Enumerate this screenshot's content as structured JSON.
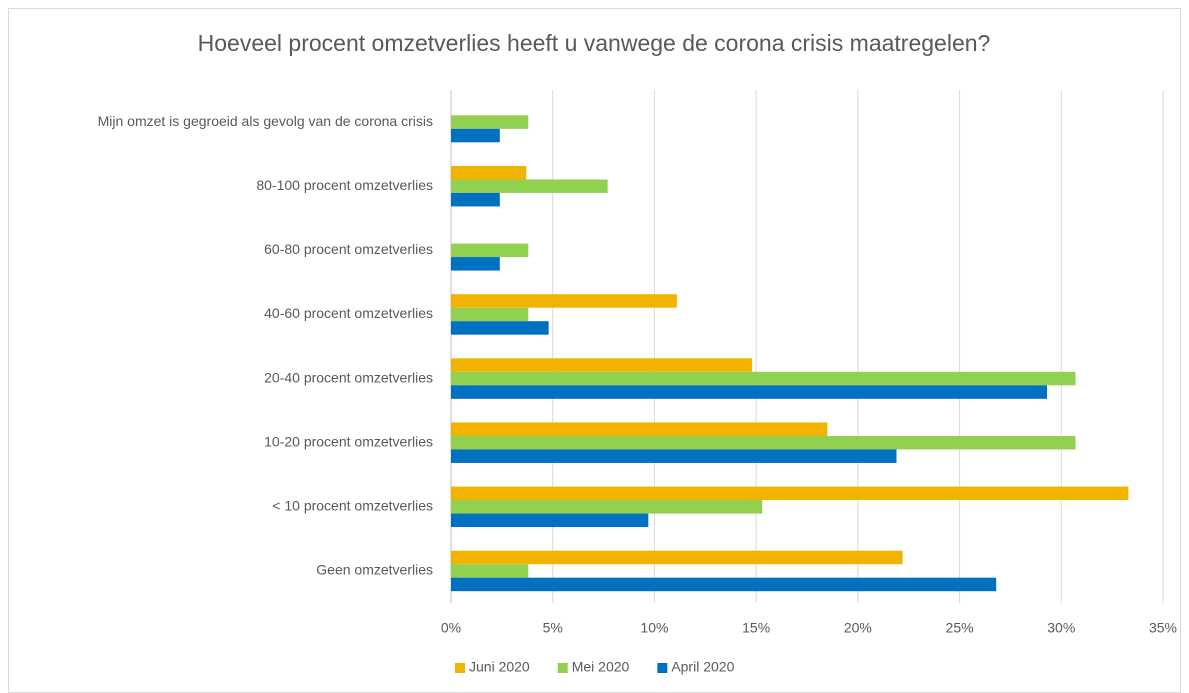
{
  "chart_data": {
    "type": "bar",
    "orientation": "horizontal",
    "title": "Hoeveel procent omzetverlies heeft u vanwege de corona crisis maatregelen?",
    "categories": [
      "Mijn omzet is gegroeid als gevolg van de corona crisis",
      "80-100 procent omzetverlies",
      "60-80 procent omzetverlies",
      "40-60 procent omzetverlies",
      "20-40 procent omzetverlies",
      "10-20 procent omzetverlies",
      "< 10 procent omzetverlies",
      "Geen omzetverlies"
    ],
    "series": [
      {
        "name": "Juni 2020",
        "color": "#f0b400",
        "values": [
          0,
          3.7,
          0,
          11.1,
          14.8,
          18.5,
          33.3,
          22.2
        ]
      },
      {
        "name": "Mei 2020",
        "color": "#92d050",
        "values": [
          3.8,
          7.7,
          3.8,
          3.8,
          30.7,
          30.7,
          15.3,
          3.8
        ]
      },
      {
        "name": "April 2020",
        "color": "#0070c0",
        "values": [
          2.4,
          2.4,
          2.4,
          4.8,
          29.3,
          21.9,
          9.7,
          26.8
        ]
      }
    ],
    "xlim": [
      0,
      35
    ],
    "xticks": [
      {
        "value": 0,
        "label": "0%"
      },
      {
        "value": 5,
        "label": "5%"
      },
      {
        "value": 10,
        "label": "10%"
      },
      {
        "value": 15,
        "label": "15%"
      },
      {
        "value": 20,
        "label": "20%"
      },
      {
        "value": 25,
        "label": "25%"
      },
      {
        "value": 30,
        "label": "30%"
      },
      {
        "value": 35,
        "label": "35%"
      }
    ],
    "grid": true,
    "legend": "bottom"
  }
}
